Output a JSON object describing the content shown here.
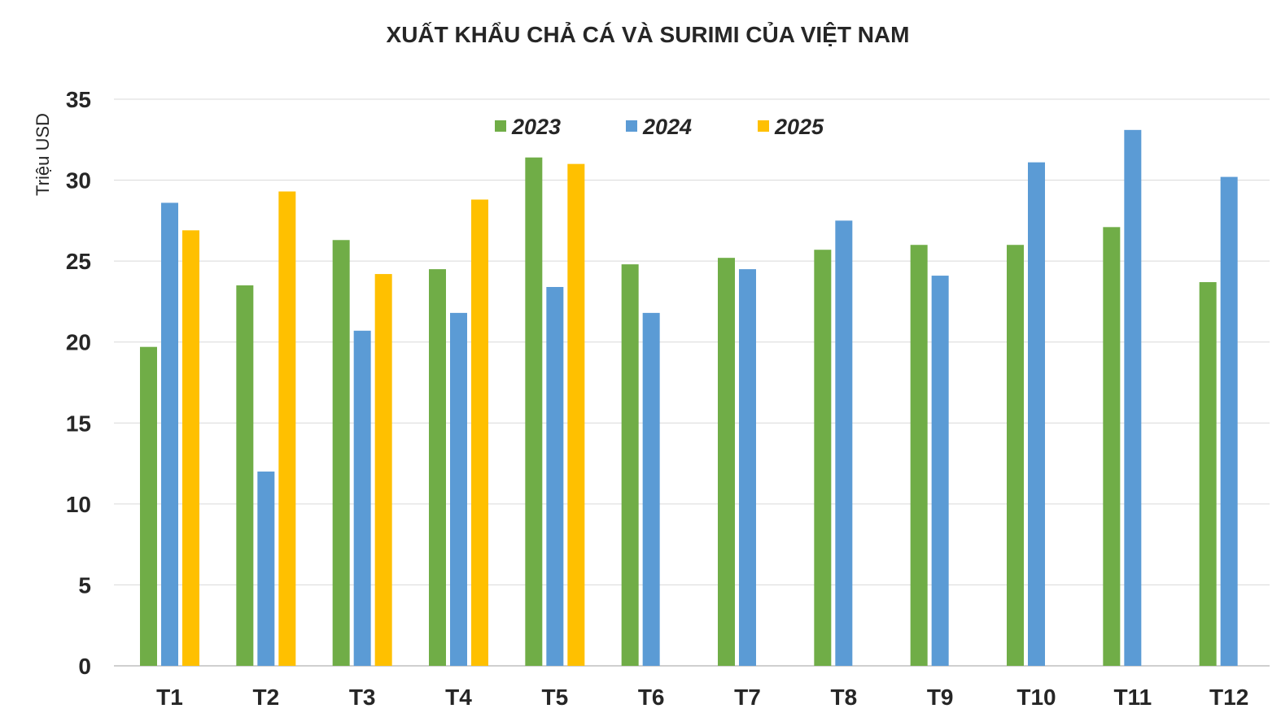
{
  "chart_data": {
    "type": "bar",
    "title": "XUẤT KHẨU CHẢ CÁ VÀ SURIMI CỦA VIỆT NAM",
    "xlabel": "",
    "ylabel": "Triệu USD",
    "ylim": [
      0,
      35
    ],
    "yticks": [
      0,
      5,
      10,
      15,
      20,
      25,
      30,
      35
    ],
    "grid": true,
    "legend_position": "top-center",
    "categories": [
      "T1",
      "T2",
      "T3",
      "T4",
      "T5",
      "T6",
      "T7",
      "T8",
      "T9",
      "T10",
      "T11",
      "T12"
    ],
    "series": [
      {
        "name": "2023",
        "color": "#70AD47",
        "values": [
          19.7,
          23.5,
          26.3,
          24.5,
          31.4,
          24.8,
          25.2,
          25.7,
          26.0,
          26.0,
          27.1,
          23.7
        ]
      },
      {
        "name": "2024",
        "color": "#5B9BD5",
        "values": [
          28.6,
          12.0,
          20.7,
          21.8,
          23.4,
          21.8,
          24.5,
          27.5,
          24.1,
          31.1,
          33.1,
          30.2
        ]
      },
      {
        "name": "2025",
        "color": "#FFC000",
        "values": [
          26.9,
          29.3,
          24.2,
          28.8,
          31.0,
          null,
          null,
          null,
          null,
          null,
          null,
          null
        ]
      }
    ]
  }
}
